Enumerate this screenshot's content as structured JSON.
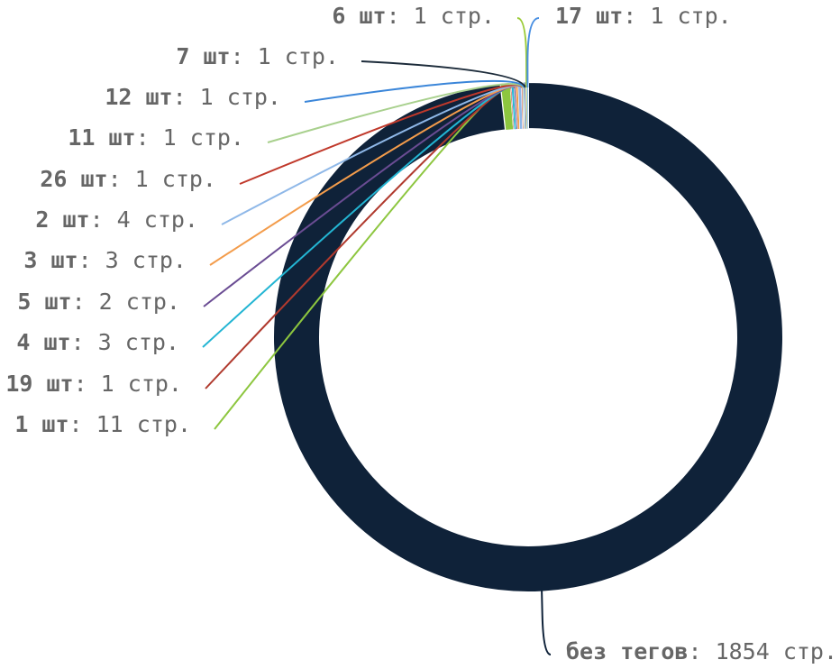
{
  "chart_data": {
    "type": "pie",
    "title": "",
    "legend": "none",
    "slices": [
      {
        "label": "без тегов",
        "value": 1854,
        "unit": "стр.",
        "color": "#0f2239"
      },
      {
        "label": "1 шт",
        "value": 11,
        "unit": "стр.",
        "color": "#8dc63f"
      },
      {
        "label": "19 шт",
        "value": 1,
        "unit": "стр.",
        "color": "#b03a2e"
      },
      {
        "label": "4 шт",
        "value": 3,
        "unit": "стр.",
        "color": "#23b5d3"
      },
      {
        "label": "5 шт",
        "value": 2,
        "unit": "стр.",
        "color": "#6a4c93"
      },
      {
        "label": "3 шт",
        "value": 3,
        "unit": "стр.",
        "color": "#f39c4b"
      },
      {
        "label": "2 шт",
        "value": 4,
        "unit": "стр.",
        "color": "#8fb8e8"
      },
      {
        "label": "26 шт",
        "value": 1,
        "unit": "стр.",
        "color": "#c0392b"
      },
      {
        "label": "11 шт",
        "value": 1,
        "unit": "стр.",
        "color": "#a8d08d"
      },
      {
        "label": "12 шт",
        "value": 1,
        "unit": "стр.",
        "color": "#3b86d9"
      },
      {
        "label": "7 шт",
        "value": 1,
        "unit": "стр.",
        "color": "#1c2b3a"
      },
      {
        "label": "6 шт",
        "value": 1,
        "unit": "стр.",
        "color": "#9ccc3a"
      },
      {
        "label": "17 шт",
        "value": 1,
        "unit": "стр.",
        "color": "#4a90e2"
      }
    ]
  }
}
